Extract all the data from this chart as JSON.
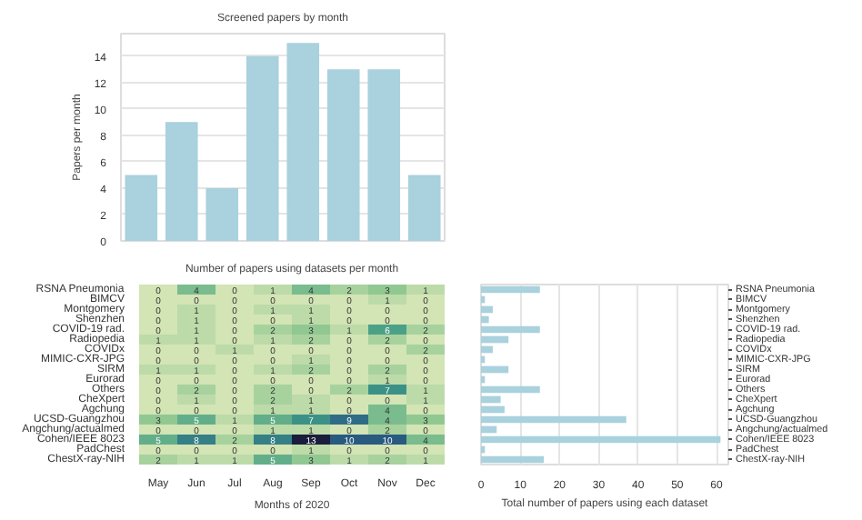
{
  "chart_data": [
    {
      "type": "bar",
      "title": "Screened papers by month",
      "ylabel": "Papers per month",
      "categories": [
        null,
        null,
        null,
        null,
        null,
        null,
        null,
        null
      ],
      "values": [
        5,
        9,
        4,
        14,
        15,
        13,
        13,
        5
      ],
      "color": "#a9d1de",
      "ylim": [
        0,
        15.7
      ],
      "yticks": [
        0,
        2,
        4,
        6,
        8,
        10,
        12,
        14
      ],
      "grid": "y",
      "tick_labels": "y"
    },
    {
      "type": "heatmap",
      "title": "Number of papers using datasets per month",
      "xlabel": "Months of 2020",
      "categories": [
        "May",
        "Jun",
        "Jul",
        "Aug",
        "Sep",
        "Oct",
        "Nov",
        "Dec"
      ],
      "y_categories": [
        "RSNA Pneumonia",
        "BIMCV",
        "Montgomery",
        "Shenzhen",
        "COVID-19 rad.",
        "Radiopedia",
        "COVIDx",
        "MIMIC-CXR-JPG",
        "SIRM",
        "Eurorad",
        "Others",
        "CheXpert",
        "Agchung",
        "UCSD-Guangzhou",
        "Angchung/actualmed",
        "Cohen/IEEE 8023",
        "PadChest",
        "ChestX-ray-NIH"
      ],
      "cells": [
        [
          0,
          4,
          0,
          1,
          4,
          2,
          3,
          1
        ],
        [
          0,
          0,
          0,
          0,
          0,
          0,
          1,
          0
        ],
        [
          0,
          1,
          0,
          1,
          1,
          0,
          0,
          0
        ],
        [
          0,
          1,
          0,
          0,
          1,
          0,
          0,
          0
        ],
        [
          0,
          1,
          0,
          2,
          3,
          1,
          6,
          2
        ],
        [
          1,
          1,
          0,
          1,
          2,
          0,
          2,
          0
        ],
        [
          0,
          0,
          1,
          0,
          0,
          0,
          0,
          2
        ],
        [
          0,
          0,
          0,
          0,
          1,
          0,
          0,
          0
        ],
        [
          1,
          1,
          0,
          1,
          2,
          0,
          2,
          0
        ],
        [
          0,
          0,
          0,
          0,
          0,
          0,
          1,
          0
        ],
        [
          0,
          2,
          0,
          2,
          0,
          2,
          7,
          1
        ],
        [
          0,
          1,
          0,
          2,
          1,
          0,
          0,
          1
        ],
        [
          0,
          0,
          0,
          1,
          1,
          0,
          4,
          0
        ],
        [
          3,
          5,
          1,
          5,
          7,
          9,
          4,
          3
        ],
        [
          0,
          0,
          0,
          1,
          1,
          0,
          2,
          0
        ],
        [
          5,
          8,
          2,
          8,
          13,
          10,
          10,
          4
        ],
        [
          0,
          0,
          0,
          0,
          1,
          0,
          0,
          0
        ],
        [
          2,
          1,
          1,
          5,
          3,
          1,
          2,
          1
        ]
      ],
      "data_labels": true
    },
    {
      "type": "bar",
      "orientation": "horizontal",
      "xlabel": "Total number of papers using each dataset",
      "categories": [
        "RSNA Pneumonia",
        "BIMCV",
        "Montgomery",
        "Shenzhen",
        "COVID-19 rad.",
        "Radiopedia",
        "COVIDx",
        "MIMIC-CXR-JPG",
        "SIRM",
        "Eurorad",
        "Others",
        "CheXpert",
        "Agchung",
        "UCSD-Guangzhou",
        "Angchung/actualmed",
        "Cohen/IEEE 8023",
        "PadChest",
        "ChestX-ray-NIH"
      ],
      "values": [
        15,
        1,
        3,
        2,
        15,
        7,
        3,
        1,
        7,
        1,
        15,
        5,
        6,
        37,
        4,
        61,
        1,
        16
      ],
      "color": "#a9d1de",
      "xlim": [
        0,
        63
      ],
      "xticks": [
        0,
        10,
        20,
        30,
        40,
        50,
        60
      ],
      "grid": "x"
    }
  ]
}
